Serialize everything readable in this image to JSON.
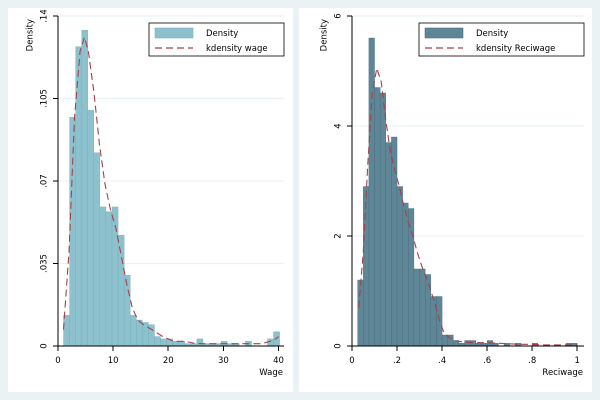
{
  "colors": {
    "figure_background": "#eaf2f3",
    "plot_background": "#ffffff",
    "left_bar_fill": "#8ec1ce",
    "left_bar_edge": "#6aa9b8",
    "right_bar_fill": "#5e8696",
    "right_bar_edge": "#3f6777",
    "kde_line": "#a34249",
    "grid": "#eaf2f3"
  },
  "chart_data": [
    {
      "type": "bar",
      "subtype": "histogram_with_kde",
      "xlabel": "Wage",
      "ylabel": "Density",
      "xlim": [
        0,
        41
      ],
      "ylim": [
        0,
        0.14
      ],
      "x_ticks": [
        0,
        10,
        20,
        30,
        40
      ],
      "x_tick_labels": [
        "0",
        "10",
        "20",
        "30",
        "40"
      ],
      "y_ticks": [
        0,
        0.035,
        0.07,
        0.105,
        0.14
      ],
      "y_tick_labels": [
        "0",
        ".035",
        ".07",
        ".105",
        ".14"
      ],
      "grid": true,
      "legend_position": "top-right",
      "legend": [
        "Density",
        "kdensity wage"
      ],
      "bins": [
        {
          "start": 1.0,
          "end": 2.1,
          "density": 0.013
        },
        {
          "start": 2.1,
          "end": 3.2,
          "density": 0.097
        },
        {
          "start": 3.2,
          "end": 4.3,
          "density": 0.127
        },
        {
          "start": 4.3,
          "end": 5.4,
          "density": 0.134
        },
        {
          "start": 5.4,
          "end": 6.5,
          "density": 0.1
        },
        {
          "start": 6.5,
          "end": 7.6,
          "density": 0.082
        },
        {
          "start": 7.6,
          "end": 8.7,
          "density": 0.059
        },
        {
          "start": 8.7,
          "end": 9.8,
          "density": 0.057
        },
        {
          "start": 9.8,
          "end": 10.9,
          "density": 0.059
        },
        {
          "start": 10.9,
          "end": 12.0,
          "density": 0.047
        },
        {
          "start": 12.0,
          "end": 13.1,
          "density": 0.03
        },
        {
          "start": 13.1,
          "end": 14.2,
          "density": 0.013
        },
        {
          "start": 14.2,
          "end": 15.3,
          "density": 0.011
        },
        {
          "start": 15.3,
          "end": 16.4,
          "density": 0.01
        },
        {
          "start": 16.4,
          "end": 17.5,
          "density": 0.009
        },
        {
          "start": 17.5,
          "end": 18.6,
          "density": 0.004
        },
        {
          "start": 18.6,
          "end": 19.7,
          "density": 0.003
        },
        {
          "start": 19.7,
          "end": 20.8,
          "density": 0.003
        },
        {
          "start": 20.8,
          "end": 21.9,
          "density": 0.002
        },
        {
          "start": 21.9,
          "end": 23.0,
          "density": 0.002
        },
        {
          "start": 23.0,
          "end": 24.1,
          "density": 0.001
        },
        {
          "start": 24.1,
          "end": 25.2,
          "density": 0.001
        },
        {
          "start": 25.2,
          "end": 26.3,
          "density": 0.003
        },
        {
          "start": 26.3,
          "end": 27.4,
          "density": 0.001
        },
        {
          "start": 27.4,
          "end": 28.5,
          "density": 0.001
        },
        {
          "start": 28.5,
          "end": 29.6,
          "density": 0.001
        },
        {
          "start": 29.6,
          "end": 30.7,
          "density": 0.002
        },
        {
          "start": 30.7,
          "end": 31.8,
          "density": 0.001
        },
        {
          "start": 31.8,
          "end": 32.9,
          "density": 0.001
        },
        {
          "start": 34.0,
          "end": 35.1,
          "density": 0.002
        },
        {
          "start": 38.0,
          "end": 39.1,
          "density": 0.003
        },
        {
          "start": 39.1,
          "end": 40.2,
          "density": 0.006
        }
      ],
      "kde": {
        "x": [
          1.0,
          2.0,
          3.0,
          4.0,
          4.8,
          5.5,
          6.5,
          7.5,
          8.5,
          9.5,
          10.5,
          11.5,
          12.5,
          13.5,
          14.5,
          15.5,
          17.0,
          19.0,
          21.0,
          23.0,
          25.0,
          27.0,
          29.0,
          31.0,
          33.0,
          35.0,
          37.0,
          38.5,
          39.5,
          40.0
        ],
        "y": [
          0.007,
          0.04,
          0.097,
          0.125,
          0.131,
          0.125,
          0.108,
          0.086,
          0.069,
          0.058,
          0.05,
          0.038,
          0.026,
          0.016,
          0.011,
          0.009,
          0.007,
          0.004,
          0.002,
          0.002,
          0.001,
          0.001,
          0.001,
          0.001,
          0.001,
          0.001,
          0.001,
          0.002,
          0.003,
          0.004
        ]
      }
    },
    {
      "type": "bar",
      "subtype": "histogram_with_kde",
      "xlabel": "Reciwage",
      "ylabel": "Density",
      "xlim": [
        0,
        1.03
      ],
      "ylim": [
        0,
        6
      ],
      "x_ticks": [
        0,
        0.2,
        0.4,
        0.6,
        0.8,
        1
      ],
      "x_tick_labels": [
        "0",
        ".2",
        ".4",
        ".6",
        ".8",
        "1"
      ],
      "y_ticks": [
        0,
        2,
        4,
        6
      ],
      "y_tick_labels": [
        "0",
        "2",
        "4",
        "6"
      ],
      "grid": true,
      "legend_position": "top-right",
      "legend": [
        "Density",
        "kdensity Reciwage"
      ],
      "bins": [
        {
          "start": 0.025,
          "end": 0.05,
          "density": 1.2
        },
        {
          "start": 0.05,
          "end": 0.075,
          "density": 2.9
        },
        {
          "start": 0.075,
          "end": 0.1,
          "density": 5.6
        },
        {
          "start": 0.1,
          "end": 0.125,
          "density": 4.7
        },
        {
          "start": 0.125,
          "end": 0.15,
          "density": 4.6
        },
        {
          "start": 0.15,
          "end": 0.175,
          "density": 3.7
        },
        {
          "start": 0.175,
          "end": 0.2,
          "density": 3.8
        },
        {
          "start": 0.2,
          "end": 0.225,
          "density": 2.9
        },
        {
          "start": 0.225,
          "end": 0.25,
          "density": 2.6
        },
        {
          "start": 0.25,
          "end": 0.275,
          "density": 2.5
        },
        {
          "start": 0.275,
          "end": 0.3,
          "density": 1.4
        },
        {
          "start": 0.3,
          "end": 0.325,
          "density": 1.4
        },
        {
          "start": 0.325,
          "end": 0.35,
          "density": 1.3
        },
        {
          "start": 0.35,
          "end": 0.375,
          "density": 0.9
        },
        {
          "start": 0.375,
          "end": 0.4,
          "density": 0.9
        },
        {
          "start": 0.4,
          "end": 0.425,
          "density": 0.2
        },
        {
          "start": 0.425,
          "end": 0.45,
          "density": 0.2
        },
        {
          "start": 0.45,
          "end": 0.475,
          "density": 0.1
        },
        {
          "start": 0.475,
          "end": 0.5,
          "density": 0.05
        },
        {
          "start": 0.5,
          "end": 0.525,
          "density": 0.1
        },
        {
          "start": 0.525,
          "end": 0.55,
          "density": 0.1
        },
        {
          "start": 0.55,
          "end": 0.575,
          "density": 0.05
        },
        {
          "start": 0.575,
          "end": 0.6,
          "density": 0.05
        },
        {
          "start": 0.6,
          "end": 0.625,
          "density": 0.1
        },
        {
          "start": 0.625,
          "end": 0.65,
          "density": 0.05
        },
        {
          "start": 0.675,
          "end": 0.7,
          "density": 0.05
        },
        {
          "start": 0.725,
          "end": 0.75,
          "density": 0.05
        },
        {
          "start": 0.8,
          "end": 0.825,
          "density": 0.05
        },
        {
          "start": 0.95,
          "end": 0.975,
          "density": 0.05
        },
        {
          "start": 0.975,
          "end": 1.0,
          "density": 0.05
        }
      ],
      "kde": {
        "x": [
          0.03,
          0.05,
          0.07,
          0.09,
          0.11,
          0.13,
          0.15,
          0.17,
          0.19,
          0.21,
          0.23,
          0.25,
          0.27,
          0.29,
          0.31,
          0.33,
          0.35,
          0.37,
          0.39,
          0.41,
          0.45,
          0.5,
          0.55,
          0.6,
          0.65,
          0.7,
          0.75,
          0.8,
          0.85,
          0.9,
          0.95,
          1.0
        ],
        "y": [
          0.7,
          1.7,
          3.3,
          4.6,
          5.05,
          4.8,
          4.1,
          3.55,
          3.2,
          2.9,
          2.55,
          2.25,
          2.0,
          1.7,
          1.45,
          1.25,
          1.0,
          0.75,
          0.45,
          0.22,
          0.1,
          0.07,
          0.06,
          0.06,
          0.05,
          0.04,
          0.03,
          0.03,
          0.02,
          0.02,
          0.02,
          0.02
        ]
      }
    }
  ]
}
